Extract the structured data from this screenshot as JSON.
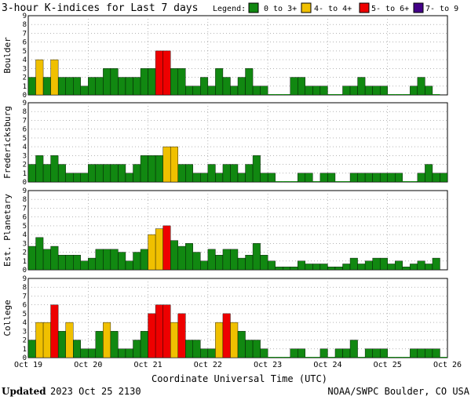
{
  "chart_data": {
    "type": "bar",
    "title": "3-hour K-indices for Last 7 days",
    "legend": {
      "label": "Legend:",
      "placement": "top-right",
      "items": [
        {
          "label": "0 to 3+",
          "color": "#118811"
        },
        {
          "label": "4- to 4+",
          "color": "#f0c000"
        },
        {
          "label": "5- to 6+",
          "color": "#ee0000"
        },
        {
          "label": "7- to 9",
          "color": "#440088"
        }
      ]
    },
    "xlabel": "Coordinate Universal Time (UTC)",
    "x_ticks": [
      "Oct 19",
      "Oct 20",
      "Oct 21",
      "Oct 22",
      "Oct 23",
      "Oct 24",
      "Oct 25",
      "Oct 26"
    ],
    "ylim": [
      0,
      9
    ],
    "y_ticks": [
      "0",
      "1",
      "2",
      "3",
      "4",
      "5",
      "6",
      "7",
      "8",
      "9"
    ],
    "grid": "dotted",
    "interval_hours": 3,
    "panels": [
      {
        "name": "Boulder",
        "values": [
          2,
          4,
          2,
          4,
          2,
          2,
          2,
          1,
          2,
          2,
          3,
          3,
          2,
          2,
          2,
          3,
          3,
          5,
          5,
          3,
          3,
          1,
          1,
          2,
          1,
          3,
          2,
          1,
          2,
          3,
          1,
          1,
          0,
          0,
          0,
          2,
          2,
          1,
          1,
          1,
          0,
          0,
          1,
          1,
          2,
          1,
          1,
          1,
          0,
          0,
          0,
          1,
          2,
          1,
          0
        ]
      },
      {
        "name": "Fredericksburg",
        "values": [
          2,
          3,
          2,
          3,
          2,
          1,
          1,
          1,
          2,
          2,
          2,
          2,
          2,
          1,
          2,
          3,
          3,
          3,
          4,
          4,
          2,
          2,
          1,
          1,
          2,
          1,
          2,
          2,
          1,
          2,
          3,
          1,
          1,
          0,
          0,
          0,
          1,
          1,
          0,
          1,
          1,
          0,
          0,
          1,
          1,
          1,
          1,
          1,
          1,
          1,
          0,
          0,
          1,
          2,
          1,
          1,
          0
        ]
      },
      {
        "name": "Est. Planetary",
        "values": [
          2.67,
          3.67,
          2.33,
          2.67,
          1.67,
          1.67,
          1.67,
          1,
          1.33,
          2.33,
          2.33,
          2.33,
          2,
          1,
          2,
          2.33,
          4,
          4.67,
          5,
          3.33,
          2.67,
          3,
          2,
          1,
          2.33,
          1.67,
          2.33,
          2.33,
          1.33,
          1.67,
          3,
          1.67,
          1,
          0.33,
          0.33,
          0.33,
          1,
          0.67,
          0.67,
          0.67,
          0.33,
          0.33,
          0.67,
          1.33,
          0.67,
          1,
          1.33,
          1.33,
          0.67,
          1,
          0.33,
          0.67,
          1,
          0.67,
          1.33
        ]
      },
      {
        "name": "College",
        "values": [
          2,
          4,
          4,
          6,
          3,
          4,
          2,
          1,
          1,
          3,
          4,
          3,
          1,
          1,
          2,
          3,
          5,
          6,
          6,
          4,
          5,
          2,
          2,
          1,
          1,
          4,
          5,
          4,
          3,
          2,
          2,
          1,
          0,
          0,
          0,
          1,
          1,
          0,
          0,
          1,
          0,
          1,
          1,
          2,
          0,
          1,
          1,
          1,
          0,
          0,
          0,
          1,
          1,
          1,
          1,
          0
        ]
      }
    ]
  },
  "footer": {
    "updated_label": "Updated",
    "updated_value": "2023 Oct 25 2130",
    "credit": "NOAA/SWPC Boulder, CO USA"
  }
}
